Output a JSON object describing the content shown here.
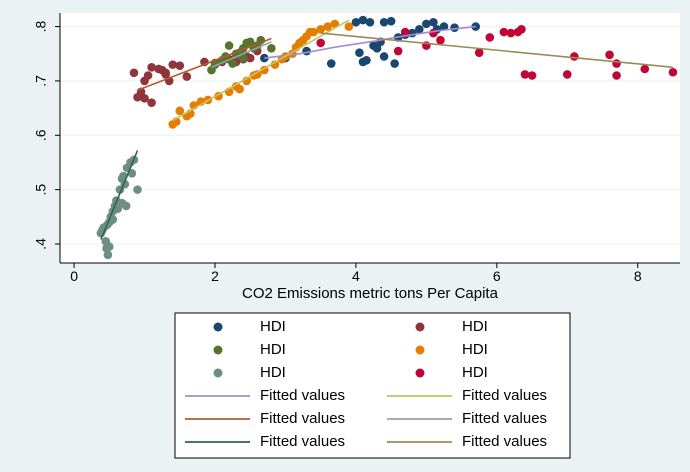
{
  "chart_data": {
    "type": "scatter",
    "xlabel": "CO2 Emissions metric tons Per Capita",
    "ylabel": "",
    "xlim": [
      -0.2,
      8.6
    ],
    "ylim": [
      0.365,
      0.825
    ],
    "xticks": [
      {
        "value": 0,
        "label": "0"
      },
      {
        "value": 2,
        "label": "2"
      },
      {
        "value": 4,
        "label": "4"
      },
      {
        "value": 6,
        "label": "6"
      },
      {
        "value": 8,
        "label": "8"
      }
    ],
    "yticks": [
      {
        "value": 0.4,
        "label": ".4"
      },
      {
        "value": 0.5,
        "label": ".5"
      },
      {
        "value": 0.6,
        "label": ".6"
      },
      {
        "value": 0.7,
        "label": ".7"
      },
      {
        "value": 0.8,
        "label": ".8"
      }
    ],
    "grid": true,
    "legend_position": "bottom",
    "series": [
      {
        "name": "HDI",
        "kind": "scatter",
        "color": "#1a476f",
        "points": [
          [
            3.65,
            0.732
          ],
          [
            4.0,
            0.808
          ],
          [
            4.1,
            0.812
          ],
          [
            4.2,
            0.808
          ],
          [
            4.05,
            0.752
          ],
          [
            4.1,
            0.735
          ],
          [
            4.15,
            0.738
          ],
          [
            4.25,
            0.765
          ],
          [
            4.3,
            0.76
          ],
          [
            4.35,
            0.772
          ],
          [
            4.4,
            0.808
          ],
          [
            4.5,
            0.81
          ],
          [
            4.4,
            0.745
          ],
          [
            4.55,
            0.732
          ],
          [
            4.6,
            0.78
          ],
          [
            4.7,
            0.785
          ],
          [
            4.8,
            0.788
          ],
          [
            4.9,
            0.795
          ],
          [
            5.0,
            0.805
          ],
          [
            5.1,
            0.808
          ],
          [
            5.15,
            0.795
          ],
          [
            5.25,
            0.8
          ],
          [
            5.4,
            0.798
          ],
          [
            5.7,
            0.8
          ],
          [
            3.0,
            0.742
          ],
          [
            3.3,
            0.755
          ],
          [
            2.7,
            0.742
          ]
        ]
      },
      {
        "name": "HDI",
        "kind": "scatter",
        "color": "#90353b",
        "points": [
          [
            0.85,
            0.715
          ],
          [
            0.9,
            0.67
          ],
          [
            0.95,
            0.68
          ],
          [
            1.0,
            0.7
          ],
          [
            1.0,
            0.668
          ],
          [
            1.05,
            0.71
          ],
          [
            1.1,
            0.725
          ],
          [
            1.1,
            0.66
          ],
          [
            1.2,
            0.722
          ],
          [
            1.25,
            0.72
          ],
          [
            1.3,
            0.712
          ],
          [
            1.35,
            0.7
          ],
          [
            1.4,
            0.73
          ],
          [
            1.5,
            0.728
          ],
          [
            1.6,
            0.708
          ],
          [
            1.85,
            0.735
          ],
          [
            2.0,
            0.733
          ],
          [
            2.1,
            0.735
          ],
          [
            2.2,
            0.74
          ],
          [
            2.3,
            0.735
          ],
          [
            2.4,
            0.74
          ],
          [
            2.45,
            0.745
          ],
          [
            2.5,
            0.742
          ],
          [
            2.6,
            0.755
          ],
          [
            1.3,
            0.715
          ]
        ]
      },
      {
        "name": "HDI",
        "kind": "scatter",
        "color": "#55752f",
        "points": [
          [
            1.95,
            0.72
          ],
          [
            2.0,
            0.73
          ],
          [
            2.1,
            0.738
          ],
          [
            2.15,
            0.745
          ],
          [
            2.2,
            0.765
          ],
          [
            2.25,
            0.732
          ],
          [
            2.3,
            0.75
          ],
          [
            2.35,
            0.752
          ],
          [
            2.4,
            0.76
          ],
          [
            2.45,
            0.77
          ],
          [
            2.5,
            0.772
          ],
          [
            2.55,
            0.76
          ],
          [
            2.6,
            0.765
          ],
          [
            2.65,
            0.775
          ],
          [
            2.8,
            0.76
          ],
          [
            2.3,
            0.748
          ],
          [
            2.4,
            0.742
          ]
        ]
      },
      {
        "name": "HDI",
        "kind": "scatter",
        "color": "#e37e00",
        "points": [
          [
            1.4,
            0.62
          ],
          [
            1.45,
            0.625
          ],
          [
            1.5,
            0.645
          ],
          [
            1.6,
            0.635
          ],
          [
            1.65,
            0.64
          ],
          [
            1.7,
            0.655
          ],
          [
            1.8,
            0.662
          ],
          [
            1.9,
            0.665
          ],
          [
            2.05,
            0.672
          ],
          [
            2.2,
            0.68
          ],
          [
            2.3,
            0.69
          ],
          [
            2.35,
            0.685
          ],
          [
            2.45,
            0.7
          ],
          [
            2.55,
            0.71
          ],
          [
            2.6,
            0.712
          ],
          [
            2.7,
            0.72
          ],
          [
            2.95,
            0.74
          ],
          [
            3.0,
            0.745
          ],
          [
            3.1,
            0.75
          ],
          [
            3.15,
            0.762
          ],
          [
            3.2,
            0.77
          ],
          [
            3.25,
            0.775
          ],
          [
            3.3,
            0.782
          ],
          [
            3.35,
            0.79
          ],
          [
            3.4,
            0.79
          ],
          [
            3.5,
            0.795
          ],
          [
            3.6,
            0.8
          ],
          [
            3.7,
            0.805
          ],
          [
            3.9,
            0.8
          ],
          [
            2.85,
            0.73
          ]
        ]
      },
      {
        "name": "HDI",
        "kind": "scatter",
        "color": "#6e8e84",
        "points": [
          [
            0.38,
            0.42
          ],
          [
            0.4,
            0.425
          ],
          [
            0.42,
            0.43
          ],
          [
            0.45,
            0.405
          ],
          [
            0.46,
            0.392
          ],
          [
            0.48,
            0.38
          ],
          [
            0.5,
            0.395
          ],
          [
            0.5,
            0.44
          ],
          [
            0.52,
            0.45
          ],
          [
            0.55,
            0.445
          ],
          [
            0.55,
            0.46
          ],
          [
            0.58,
            0.47
          ],
          [
            0.6,
            0.48
          ],
          [
            0.62,
            0.465
          ],
          [
            0.65,
            0.5
          ],
          [
            0.68,
            0.52
          ],
          [
            0.7,
            0.525
          ],
          [
            0.72,
            0.51
          ],
          [
            0.75,
            0.54
          ],
          [
            0.8,
            0.55
          ],
          [
            0.82,
            0.53
          ],
          [
            0.85,
            0.555
          ],
          [
            0.9,
            0.5
          ],
          [
            0.68,
            0.475
          ],
          [
            0.74,
            0.47
          ],
          [
            0.47,
            0.435
          ]
        ]
      },
      {
        "name": "HDI",
        "kind": "scatter",
        "color": "#c10534",
        "points": [
          [
            3.5,
            0.77
          ],
          [
            4.6,
            0.755
          ],
          [
            4.7,
            0.79
          ],
          [
            5.0,
            0.765
          ],
          [
            5.1,
            0.788
          ],
          [
            5.2,
            0.775
          ],
          [
            5.75,
            0.752
          ],
          [
            6.1,
            0.79
          ],
          [
            6.2,
            0.788
          ],
          [
            6.3,
            0.79
          ],
          [
            6.35,
            0.795
          ],
          [
            6.4,
            0.712
          ],
          [
            6.5,
            0.71
          ],
          [
            7.0,
            0.712
          ],
          [
            7.1,
            0.745
          ],
          [
            7.6,
            0.748
          ],
          [
            7.7,
            0.71
          ],
          [
            7.7,
            0.732
          ],
          [
            8.1,
            0.722
          ],
          [
            8.5,
            0.716
          ],
          [
            5.9,
            0.78
          ]
        ]
      },
      {
        "name": "Fitted values",
        "kind": "line",
        "color": "#9f8ed1",
        "points": [
          [
            2.7,
            0.742
          ],
          [
            3.2,
            0.75
          ],
          [
            3.7,
            0.762
          ],
          [
            4.2,
            0.772
          ],
          [
            4.7,
            0.783
          ],
          [
            5.2,
            0.793
          ],
          [
            5.7,
            0.8
          ]
        ]
      },
      {
        "name": "Fitted values",
        "kind": "line",
        "color": "#c8c35e",
        "points": [
          [
            1.4,
            0.627
          ],
          [
            3.9,
            0.812
          ]
        ]
      },
      {
        "name": "Fitted values",
        "kind": "line",
        "color": "#b8592c",
        "points": [
          [
            0.9,
            0.683
          ],
          [
            2.8,
            0.778
          ]
        ]
      },
      {
        "name": "Fitted values",
        "kind": "line",
        "color": "#92a5ab",
        "points": [
          [
            1.95,
            0.725
          ],
          [
            2.8,
            0.772
          ]
        ]
      },
      {
        "name": "Fitted values",
        "kind": "line",
        "color": "#2f6352",
        "points": [
          [
            0.38,
            0.408
          ],
          [
            0.9,
            0.572
          ]
        ]
      },
      {
        "name": "Fitted values",
        "kind": "line",
        "color": "#9b8a56",
        "points": [
          [
            3.5,
            0.788
          ],
          [
            8.5,
            0.725
          ]
        ]
      }
    ]
  }
}
